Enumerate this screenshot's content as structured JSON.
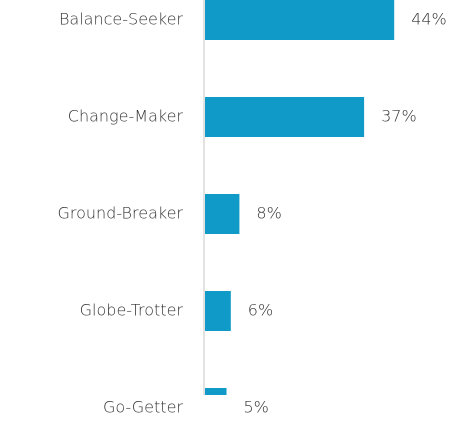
{
  "chart_data": {
    "type": "bar",
    "orientation": "horizontal",
    "categories": [
      "Balance-Seeker",
      "Change-Maker",
      "Ground-Breaker",
      "Globe-Trotter",
      "Go-Getter"
    ],
    "values": [
      44,
      37,
      8,
      6,
      5
    ],
    "value_labels": [
      "44%",
      "37%",
      "8%",
      "6%",
      "5%"
    ],
    "color": "#0f9ac8"
  }
}
